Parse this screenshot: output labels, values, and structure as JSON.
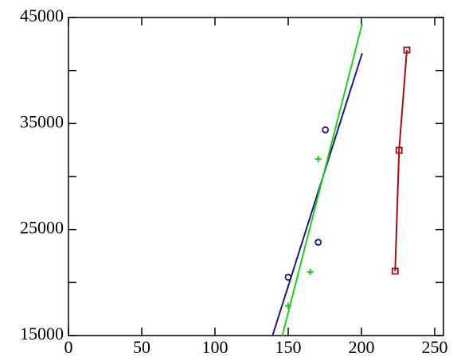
{
  "chart_data": {
    "type": "scatter",
    "xlim": [
      0,
      256
    ],
    "xticks": [
      0,
      50,
      100,
      150,
      200,
      250
    ],
    "ylim": [
      15000,
      45000
    ],
    "yticks": [
      15000,
      25000,
      35000,
      45000
    ],
    "yticks_minor": [
      20000,
      30000,
      40000
    ],
    "series": [
      {
        "color": "#1a1a80",
        "marker": "circle",
        "line": false,
        "x": [
          150,
          170.5,
          175.4
        ],
        "values": [
          20500,
          23800,
          34400
        ]
      },
      {
        "color": "#22cc22",
        "marker": "plus",
        "line": false,
        "x": [
          150,
          165,
          170.5
        ],
        "values": [
          17800,
          21000,
          31650
        ]
      },
      {
        "color": "#a01010",
        "marker": "square",
        "line": true,
        "x": [
          223,
          225.7,
          231
        ],
        "values": [
          21075,
          32475,
          41925
        ]
      },
      {
        "color": "#1a1a80",
        "marker": "none",
        "line": true,
        "x": [
          139.3,
          200.5
        ],
        "values": [
          15000,
          41625
        ]
      },
      {
        "color": "#22cc22",
        "marker": "none",
        "line": true,
        "x": [
          146,
          200.5
        ],
        "values": [
          15000,
          44400
        ]
      }
    ]
  }
}
